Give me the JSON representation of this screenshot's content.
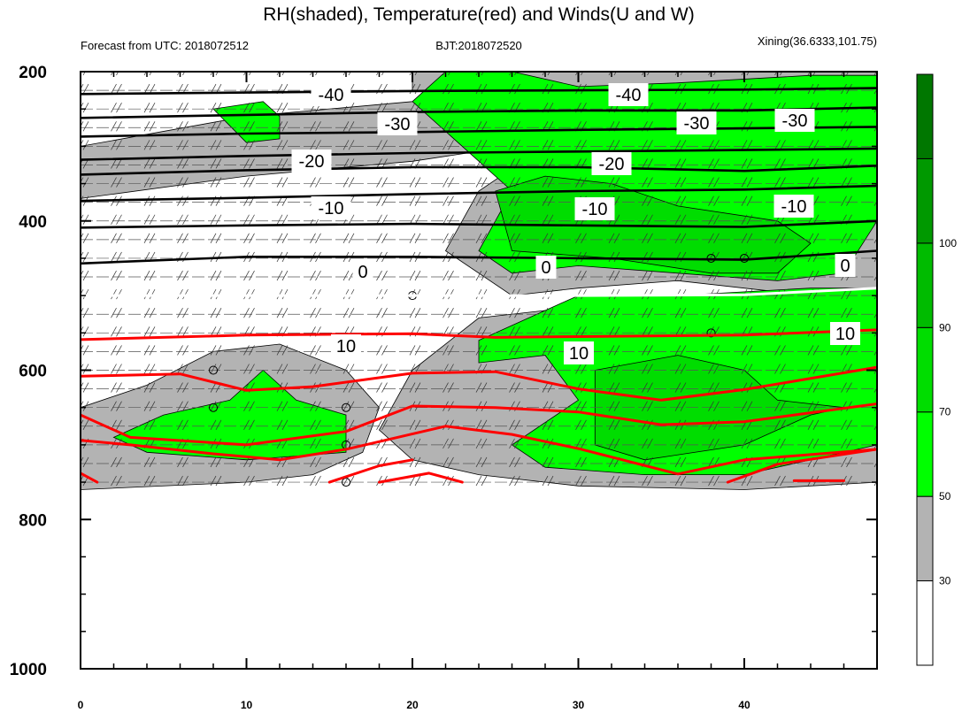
{
  "chart_data": {
    "type": "heatmap",
    "title": "RH(shaded), Temperature(red) and Winds(U and W)",
    "subtitle_left": "Forecast from UTC: 2018072512",
    "subtitle_center": "BJT:2018072520",
    "subtitle_right": "Xining(36.6333,101.75)",
    "x_axis": {
      "ticks": [
        "0",
        "10",
        "20",
        "30",
        "40"
      ],
      "range": [
        0,
        48
      ]
    },
    "y_axis": {
      "ticks": [
        "200",
        "400",
        "600",
        "800",
        "1000"
      ],
      "range": [
        200,
        1000
      ],
      "inverted": true
    },
    "colorbar": {
      "tick_labels": [
        "30",
        "50",
        "70",
        "90",
        "100"
      ],
      "levels": [
        0,
        30,
        50,
        70,
        90,
        100,
        110
      ],
      "colors": [
        "#ffffff",
        "#b3b3b3",
        "#00ff00",
        "#00dd00",
        "#00bb00",
        "#009900",
        "#007700"
      ]
    },
    "temperature_contour_labels": [
      "-40",
      "-40",
      "-30",
      "-30",
      "-30",
      "-20",
      "-20",
      "-10",
      "-10",
      "-10",
      "0",
      "0",
      "0",
      "10",
      "10",
      "10"
    ],
    "temperature_isolines": [
      {
        "level": -40,
        "p": [
          [
            0,
            230
          ],
          [
            10,
            228
          ],
          [
            20,
            226
          ],
          [
            30,
            225
          ],
          [
            40,
            224
          ],
          [
            48,
            222
          ]
        ]
      },
      {
        "level": -35,
        "p": [
          [
            0,
            262
          ],
          [
            10,
            258
          ],
          [
            20,
            254
          ],
          [
            30,
            252
          ],
          [
            40,
            252
          ],
          [
            48,
            248
          ]
        ]
      },
      {
        "level": -30,
        "p": [
          [
            0,
            287
          ],
          [
            10,
            283
          ],
          [
            20,
            281
          ],
          [
            30,
            278
          ],
          [
            40,
            276
          ],
          [
            48,
            274
          ]
        ]
      },
      {
        "level": -25,
        "p": [
          [
            0,
            318
          ],
          [
            10,
            313
          ],
          [
            20,
            309
          ],
          [
            30,
            307
          ],
          [
            40,
            305
          ],
          [
            48,
            303
          ]
        ]
      },
      {
        "level": -20,
        "p": [
          [
            0,
            338
          ],
          [
            10,
            332
          ],
          [
            20,
            328
          ],
          [
            30,
            328
          ],
          [
            40,
            333
          ],
          [
            48,
            326
          ]
        ]
      },
      {
        "level": -15,
        "p": [
          [
            0,
            373
          ],
          [
            10,
            369
          ],
          [
            20,
            364
          ],
          [
            30,
            360
          ],
          [
            40,
            358
          ],
          [
            48,
            353
          ]
        ]
      },
      {
        "level": -10,
        "p": [
          [
            0,
            409
          ],
          [
            10,
            406
          ],
          [
            20,
            404
          ],
          [
            30,
            406
          ],
          [
            40,
            408
          ],
          [
            48,
            400
          ]
        ]
      },
      {
        "level": -5,
        "p": [
          [
            0,
            457
          ],
          [
            10,
            448
          ],
          [
            20,
            448
          ],
          [
            30,
            450
          ],
          [
            40,
            452
          ],
          [
            48,
            440
          ]
        ]
      },
      {
        "level": 0,
        "p": [
          [
            0,
            500
          ],
          [
            10,
            500
          ],
          [
            20,
            500
          ],
          [
            26,
            500
          ],
          [
            30,
            500
          ],
          [
            40,
            499
          ],
          [
            48,
            490
          ]
        ]
      },
      {
        "level": 5,
        "p": [
          [
            0,
            559
          ],
          [
            10,
            553
          ],
          [
            20,
            551
          ],
          [
            25,
            556
          ],
          [
            30,
            555
          ],
          [
            40,
            553
          ],
          [
            48,
            546
          ]
        ]
      },
      {
        "level": 10,
        "p": [
          [
            0,
            608
          ],
          [
            6,
            605
          ],
          [
            10,
            627
          ],
          [
            14,
            622
          ],
          [
            20,
            604
          ],
          [
            25,
            602
          ],
          [
            30,
            625
          ],
          [
            35,
            640
          ],
          [
            40,
            626
          ],
          [
            48,
            596
          ]
        ]
      },
      {
        "level": 15,
        "p": [
          [
            0,
            660
          ],
          [
            3,
            690
          ],
          [
            10,
            700
          ],
          [
            16,
            682
          ],
          [
            20,
            648
          ],
          [
            25,
            650
          ],
          [
            30,
            656
          ],
          [
            35,
            673
          ],
          [
            40,
            669
          ],
          [
            48,
            645
          ]
        ]
      },
      {
        "level": 20,
        "p": [
          [
            0,
            694
          ],
          [
            3,
            700
          ],
          [
            8,
            712
          ],
          [
            12,
            720
          ],
          [
            16,
            706
          ],
          [
            22,
            675
          ],
          [
            26,
            686
          ],
          [
            30,
            705
          ],
          [
            36,
            739
          ],
          [
            40,
            720
          ],
          [
            48,
            706
          ]
        ]
      },
      {
        "level": 25,
        "p": [
          [
            0,
            738
          ],
          [
            1,
            750
          ]
        ]
      },
      {
        "level": 25,
        "p": [
          [
            15,
            750
          ],
          [
            18,
            728
          ],
          [
            20,
            720
          ]
        ]
      },
      {
        "level": 25,
        "p": [
          [
            18,
            750
          ],
          [
            21,
            738
          ],
          [
            23,
            750
          ]
        ]
      },
      {
        "level": 25,
        "p": [
          [
            39,
            750
          ],
          [
            42,
            726
          ],
          [
            48,
            706
          ]
        ]
      },
      {
        "level": 25,
        "p": [
          [
            43,
            748
          ],
          [
            46,
            748
          ]
        ]
      }
    ],
    "rh_regions": [
      {
        "rh": 40,
        "p": [
          [
            0,
            300
          ],
          [
            10,
            260
          ],
          [
            20,
            240
          ],
          [
            22,
            210
          ],
          [
            28,
            205
          ],
          [
            34,
            210
          ],
          [
            40,
            215
          ],
          [
            48,
            230
          ],
          [
            48,
            320
          ],
          [
            46,
            340
          ],
          [
            40,
            340
          ],
          [
            36,
            320
          ],
          [
            30,
            280
          ],
          [
            26,
            300
          ],
          [
            20,
            320
          ],
          [
            10,
            340
          ],
          [
            0,
            370
          ]
        ]
      },
      {
        "rh": 40,
        "p": [
          [
            20,
            200
          ],
          [
            48,
            200
          ],
          [
            48,
            220
          ],
          [
            30,
            220
          ],
          [
            20,
            225
          ]
        ]
      },
      {
        "rh": 40,
        "p": [
          [
            26,
            330
          ],
          [
            28,
            300
          ],
          [
            32,
            330
          ],
          [
            38,
            320
          ],
          [
            44,
            360
          ],
          [
            48,
            390
          ],
          [
            48,
            520
          ],
          [
            44,
            500
          ],
          [
            36,
            480
          ],
          [
            30,
            490
          ],
          [
            26,
            500
          ],
          [
            22,
            440
          ],
          [
            24,
            360
          ]
        ]
      },
      {
        "rh": 40,
        "p": [
          [
            20,
            600
          ],
          [
            24,
            530
          ],
          [
            28,
            520
          ],
          [
            32,
            550
          ],
          [
            36,
            560
          ],
          [
            40,
            560
          ],
          [
            44,
            560
          ],
          [
            48,
            570
          ],
          [
            48,
            750
          ],
          [
            40,
            760
          ],
          [
            30,
            755
          ],
          [
            24,
            740
          ],
          [
            20,
            720
          ],
          [
            18,
            680
          ]
        ]
      },
      {
        "rh": 40,
        "p": [
          [
            0,
            650
          ],
          [
            4,
            620
          ],
          [
            8,
            575
          ],
          [
            12,
            565
          ],
          [
            16,
            600
          ],
          [
            18,
            650
          ],
          [
            17,
            710
          ],
          [
            14,
            740
          ],
          [
            10,
            750
          ],
          [
            0,
            760
          ]
        ]
      },
      {
        "rh": 60,
        "p": [
          [
            2,
            690
          ],
          [
            5,
            660
          ],
          [
            9,
            640
          ],
          [
            11,
            600
          ],
          [
            13,
            640
          ],
          [
            16,
            660
          ],
          [
            16,
            710
          ],
          [
            10,
            720
          ],
          [
            4,
            710
          ]
        ]
      },
      {
        "rh": 60,
        "p": [
          [
            8,
            250
          ],
          [
            11,
            240
          ],
          [
            12,
            260
          ],
          [
            12,
            290
          ],
          [
            10,
            295
          ]
        ]
      },
      {
        "rh": 60,
        "p": [
          [
            22,
            200
          ],
          [
            26,
            200
          ],
          [
            30,
            220
          ],
          [
            36,
            215
          ],
          [
            44,
            205
          ],
          [
            48,
            205
          ],
          [
            48,
            400
          ],
          [
            46,
            470
          ],
          [
            42,
            480
          ],
          [
            36,
            470
          ],
          [
            30,
            460
          ],
          [
            26,
            470
          ],
          [
            24,
            440
          ],
          [
            26,
            360
          ],
          [
            22,
            280
          ],
          [
            20,
            240
          ]
        ]
      },
      {
        "rh": 60,
        "p": [
          [
            24,
            560
          ],
          [
            28,
            520
          ],
          [
            30,
            500
          ],
          [
            36,
            500
          ],
          [
            44,
            490
          ],
          [
            48,
            490
          ],
          [
            48,
            700
          ],
          [
            40,
            740
          ],
          [
            34,
            740
          ],
          [
            28,
            730
          ],
          [
            26,
            700
          ],
          [
            30,
            640
          ],
          [
            28,
            580
          ],
          [
            24,
            590
          ]
        ]
      },
      {
        "rh": 80,
        "p": [
          [
            25,
            360
          ],
          [
            28,
            340
          ],
          [
            32,
            350
          ],
          [
            36,
            380
          ],
          [
            42,
            400
          ],
          [
            44,
            430
          ],
          [
            42,
            470
          ],
          [
            38,
            470
          ],
          [
            32,
            450
          ],
          [
            26,
            440
          ]
        ]
      },
      {
        "rh": 80,
        "p": [
          [
            31,
            600
          ],
          [
            36,
            580
          ],
          [
            40,
            600
          ],
          [
            42,
            640
          ],
          [
            46,
            650
          ],
          [
            44,
            660
          ],
          [
            40,
            700
          ],
          [
            34,
            720
          ],
          [
            31,
            700
          ],
          [
            31,
            660
          ]
        ]
      }
    ]
  }
}
